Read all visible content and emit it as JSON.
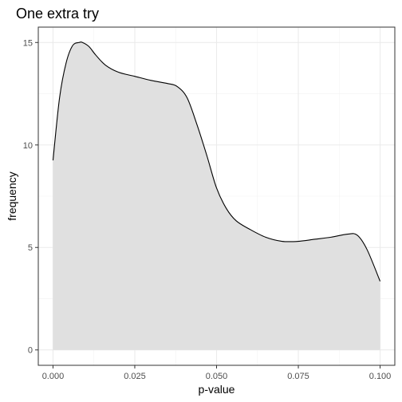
{
  "chart_data": {
    "type": "area",
    "title": "One extra try",
    "xlabel": "p-value",
    "ylabel": "frequency",
    "xlim": [
      -0.0045,
      0.1045
    ],
    "ylim": [
      -0.75,
      15.75
    ],
    "x_ticks": [
      0.0,
      0.025,
      0.05,
      0.075,
      0.1
    ],
    "x_tick_labels": [
      "0.000",
      "0.025",
      "0.050",
      "0.075",
      "0.100"
    ],
    "y_ticks": [
      0,
      5,
      10,
      15
    ],
    "y_tick_labels": [
      "0",
      "5",
      "10",
      "15"
    ],
    "grid": true,
    "theme": "bw",
    "series": [
      {
        "x": [
          0.0,
          0.002,
          0.004,
          0.006,
          0.008,
          0.009,
          0.011,
          0.013,
          0.016,
          0.02,
          0.025,
          0.03,
          0.035,
          0.038,
          0.041,
          0.044,
          0.047,
          0.05,
          0.053,
          0.056,
          0.06,
          0.065,
          0.07,
          0.075,
          0.08,
          0.085,
          0.09,
          0.093,
          0.096,
          0.1
        ],
        "values": [
          9.25,
          12.3,
          14.0,
          14.85,
          15.0,
          15.0,
          14.8,
          14.4,
          13.9,
          13.55,
          13.35,
          13.15,
          13.0,
          12.85,
          12.3,
          11.0,
          9.5,
          7.9,
          6.9,
          6.3,
          5.9,
          5.5,
          5.3,
          5.3,
          5.4,
          5.5,
          5.65,
          5.6,
          4.9,
          3.35
        ],
        "fill": "#e0e0e0",
        "stroke": "#000000"
      }
    ]
  }
}
